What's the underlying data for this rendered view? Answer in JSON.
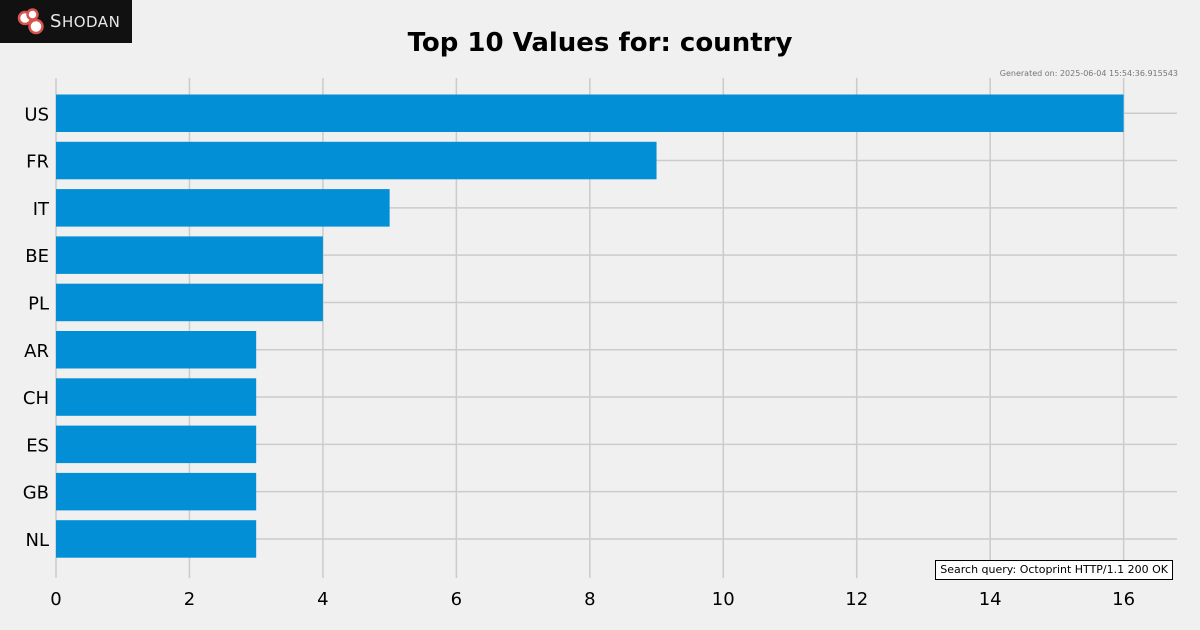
{
  "logo": {
    "brand": "Shodan"
  },
  "header": {
    "generated": "Generated on: 2025-06-04 15:54:36.915543"
  },
  "footer": {
    "query": "Search query: Octoprint HTTP/1.1 200 OK"
  },
  "colors": {
    "bar": "#028fd6",
    "grid": "#cbcbcb",
    "background": "#f0f0f0"
  },
  "chart_data": {
    "type": "bar",
    "orientation": "horizontal",
    "title": "Top 10 Values for: country",
    "categories": [
      "US",
      "FR",
      "IT",
      "BE",
      "PL",
      "AR",
      "CH",
      "ES",
      "GB",
      "NL"
    ],
    "values": [
      16,
      9,
      5,
      4,
      4,
      3,
      3,
      3,
      3,
      3
    ],
    "xticks": [
      "0",
      "2",
      "4",
      "6",
      "8",
      "10",
      "12",
      "14",
      "16"
    ],
    "xlim": [
      0,
      16.8
    ],
    "xlabel": "",
    "ylabel": "",
    "grid": true,
    "legend": "none"
  }
}
